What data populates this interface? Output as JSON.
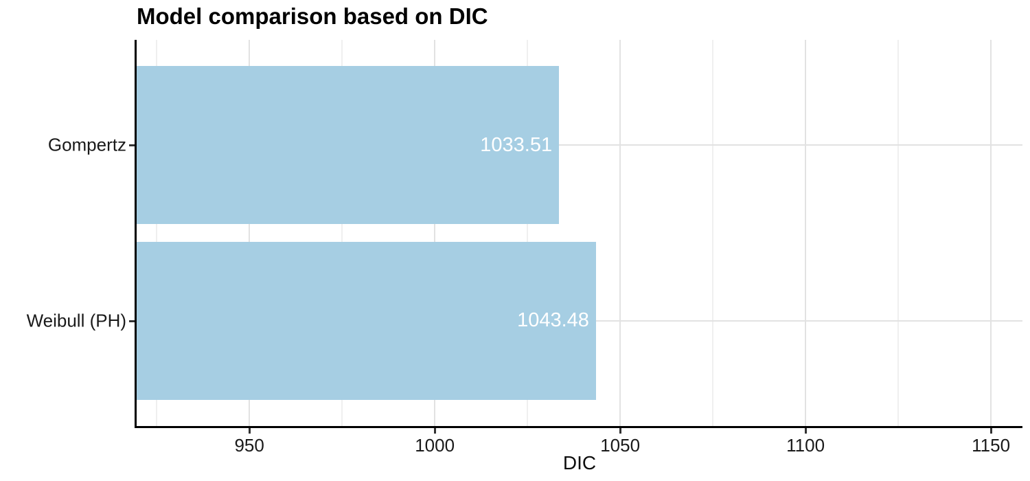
{
  "chart_data": {
    "type": "bar",
    "orientation": "horizontal",
    "title": "Model comparison based on DIC",
    "xlabel": "DIC",
    "ylabel": "",
    "categories": [
      "Gompertz",
      "Weibull (PH)"
    ],
    "values": [
      1033.51,
      1043.48
    ],
    "bar_labels": [
      "1033.51",
      "1043.48"
    ],
    "xlim": [
      919.6,
      1158.5
    ],
    "x_major_ticks": [
      950,
      1000,
      1050,
      1100,
      1150
    ],
    "x_minor_ticks": [
      925,
      975,
      1025,
      1075,
      1125
    ],
    "grid": "major and minor vertical, major horizontal at category centers",
    "legend_position": "none",
    "colors": {
      "bar_fill": "#A6CEE3",
      "bar_label_text": "#FFFFFF",
      "grid_major": "#E2E2E2",
      "grid_minor": "#EFEFEF",
      "axis_line": "#000000",
      "axis_text": "#1A1A1A",
      "title_text": "#000000",
      "background": "#FFFFFF"
    }
  }
}
